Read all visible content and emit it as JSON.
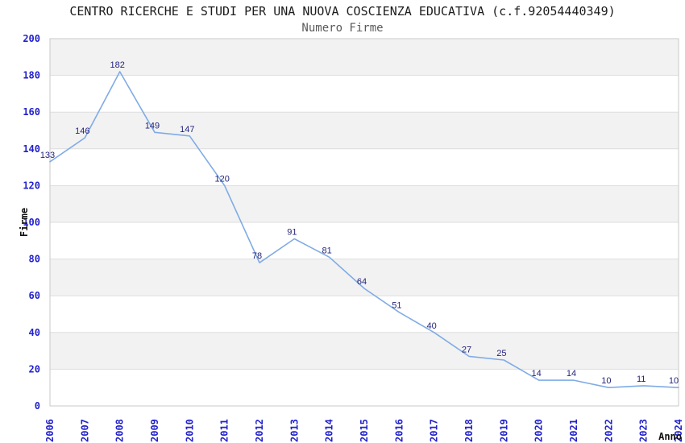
{
  "page": {
    "title": "CENTRO RICERCHE E STUDI PER UNA NUOVA COSCIENZA EDUCATIVA (c.f.92054440349)",
    "subtitle": "Numero Firme"
  },
  "chart_data": {
    "type": "line",
    "title": "CENTRO RICERCHE E STUDI PER UNA NUOVA COSCIENZA EDUCATIVA (c.f.92054440349)",
    "subtitle": "Numero Firme",
    "xlabel": "Anno",
    "ylabel": "Firme",
    "categories": [
      "2006",
      "2007",
      "2008",
      "2009",
      "2010",
      "2011",
      "2012",
      "2013",
      "2014",
      "2015",
      "2016",
      "2017",
      "2018",
      "2019",
      "2020",
      "2021",
      "2022",
      "2023",
      "2024"
    ],
    "values": [
      133,
      146,
      182,
      149,
      147,
      120,
      78,
      91,
      81,
      64,
      51,
      40,
      27,
      25,
      14,
      14,
      10,
      11,
      10
    ],
    "ylim": [
      0,
      200
    ],
    "yticks": [
      0,
      20,
      40,
      60,
      80,
      100,
      120,
      140,
      160,
      180,
      200
    ],
    "grid": "horizontal-bands",
    "legend": "none",
    "point_labels_visible": true,
    "colors": {
      "line": "#7fabe6",
      "data_label": "#24247c",
      "tick_label": "#2222cc",
      "band": "#f2f2f2",
      "gridline": "#dddddd",
      "border": "#c9c9c9",
      "axis_title": "#111111",
      "title": "#1c1c1c",
      "subtitle": "#5a5a5a"
    }
  }
}
